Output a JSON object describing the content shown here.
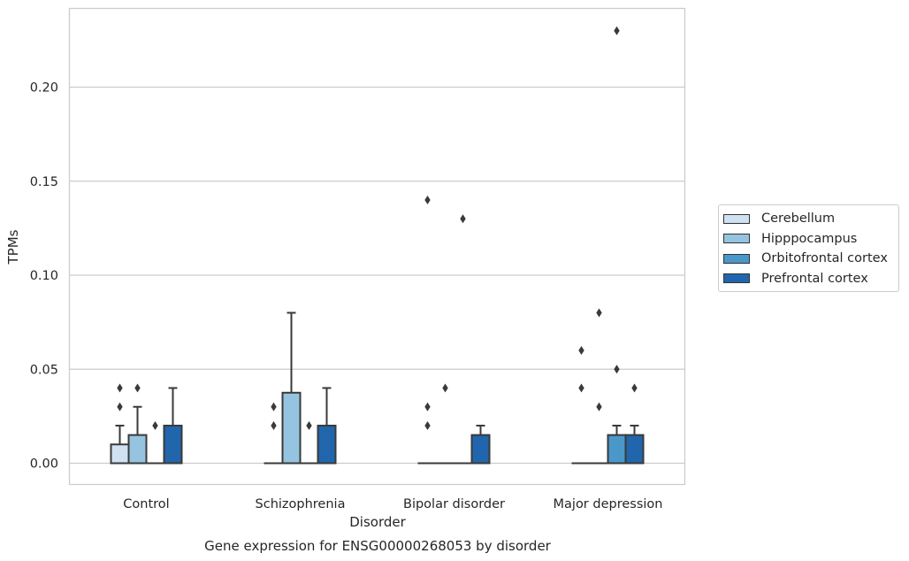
{
  "chart_data": {
    "type": "box",
    "title": "Gene expression for ENSG00000268053 by disorder",
    "xlabel": "Disorder",
    "ylabel": "TPMs",
    "ylim": [
      -0.011,
      0.242
    ],
    "yticks": [
      "0.00",
      "0.05",
      "0.10",
      "0.15",
      "0.20"
    ],
    "ytick_values": [
      0.0,
      0.05,
      0.1,
      0.15,
      0.2
    ],
    "categories": [
      "Control",
      "Schizophrenia",
      "Bipolar disorder",
      "Major depression"
    ],
    "grid": "horizontal",
    "legend_position": "right",
    "series": [
      {
        "name": "Cerebellum",
        "color": "#d0e1f2",
        "boxes": [
          {
            "q1": 0.0,
            "median": 0.0,
            "q3": 0.01,
            "whisker_low": 0.0,
            "whisker_high": 0.02,
            "outliers": [
              0.03,
              0.04
            ]
          },
          {
            "q1": 0.0,
            "median": 0.0,
            "q3": 0.0,
            "whisker_low": 0.0,
            "whisker_high": 0.0,
            "outliers": [
              0.02,
              0.03
            ]
          },
          {
            "q1": 0.0,
            "median": 0.0,
            "q3": 0.0,
            "whisker_low": 0.0,
            "whisker_high": 0.0,
            "outliers": [
              0.02,
              0.03,
              0.14
            ]
          },
          {
            "q1": 0.0,
            "median": 0.0,
            "q3": 0.0,
            "whisker_low": 0.0,
            "whisker_high": 0.0,
            "outliers": [
              0.04,
              0.06
            ]
          }
        ]
      },
      {
        "name": "Hipppocampus",
        "color": "#94c4df",
        "boxes": [
          {
            "q1": 0.0,
            "median": 0.0,
            "q3": 0.015,
            "whisker_low": 0.0,
            "whisker_high": 0.03,
            "outliers": [
              0.04
            ]
          },
          {
            "q1": 0.0,
            "median": 0.0,
            "q3": 0.0375,
            "whisker_low": 0.0,
            "whisker_high": 0.08,
            "outliers": []
          },
          {
            "q1": 0.0,
            "median": 0.0,
            "q3": 0.0,
            "whisker_low": 0.0,
            "whisker_high": 0.0,
            "outliers": [
              0.04
            ]
          },
          {
            "q1": 0.0,
            "median": 0.0,
            "q3": 0.0,
            "whisker_low": 0.0,
            "whisker_high": 0.0,
            "outliers": [
              0.03,
              0.08
            ]
          }
        ]
      },
      {
        "name": "Orbitofrontal cortex",
        "color": "#4a98c9",
        "boxes": [
          {
            "q1": 0.0,
            "median": 0.0,
            "q3": 0.0,
            "whisker_low": 0.0,
            "whisker_high": 0.0,
            "outliers": [
              0.02
            ]
          },
          {
            "q1": 0.0,
            "median": 0.0,
            "q3": 0.0,
            "whisker_low": 0.0,
            "whisker_high": 0.0,
            "outliers": [
              0.02
            ]
          },
          {
            "q1": 0.0,
            "median": 0.0,
            "q3": 0.0,
            "whisker_low": 0.0,
            "whisker_high": 0.0,
            "outliers": [
              0.13
            ]
          },
          {
            "q1": 0.0,
            "median": 0.0,
            "q3": 0.015,
            "whisker_low": 0.0,
            "whisker_high": 0.02,
            "outliers": [
              0.05,
              0.23
            ]
          }
        ]
      },
      {
        "name": "Prefrontal cortex",
        "color": "#2166ac",
        "boxes": [
          {
            "q1": 0.0,
            "median": 0.0,
            "q3": 0.02,
            "whisker_low": 0.0,
            "whisker_high": 0.04,
            "outliers": []
          },
          {
            "q1": 0.0,
            "median": 0.0,
            "q3": 0.02,
            "whisker_low": 0.0,
            "whisker_high": 0.04,
            "outliers": []
          },
          {
            "q1": 0.0,
            "median": 0.0,
            "q3": 0.015,
            "whisker_low": 0.0,
            "whisker_high": 0.02,
            "outliers": []
          },
          {
            "q1": 0.0,
            "median": 0.0,
            "q3": 0.015,
            "whisker_low": 0.0,
            "whisker_high": 0.02,
            "outliers": [
              0.04
            ]
          }
        ]
      }
    ]
  }
}
